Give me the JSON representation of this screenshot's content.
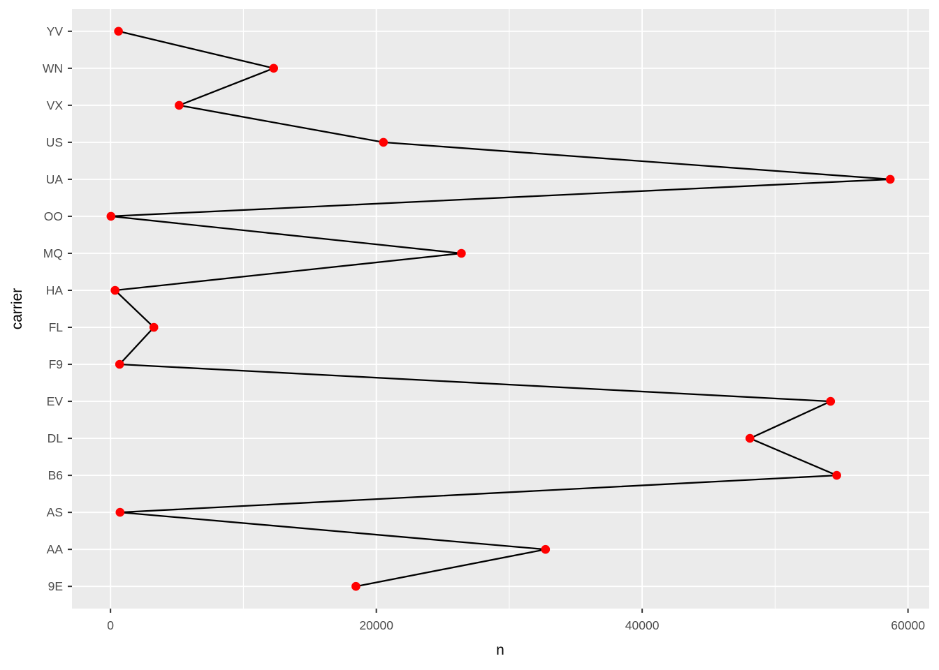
{
  "chart_data": {
    "type": "line",
    "subtype": "geom_line_plus_geom_point",
    "orientation": "categorical-y-continuous-x",
    "title": "",
    "xlabel": "n",
    "ylabel": "carrier",
    "categories_bottom_to_top": [
      "9E",
      "AA",
      "AS",
      "B6",
      "DL",
      "EV",
      "F9",
      "FL",
      "HA",
      "MQ",
      "OO",
      "UA",
      "US",
      "VX",
      "WN",
      "YV"
    ],
    "series": [
      {
        "name": "n",
        "values": [
          18460,
          32729,
          714,
          54635,
          48110,
          54173,
          685,
          3260,
          342,
          26397,
          32,
          58665,
          20536,
          5162,
          12275,
          601
        ]
      }
    ],
    "x_ticks": [
      0,
      20000,
      40000,
      60000
    ],
    "x_tick_labels": [
      "0",
      "20000",
      "40000",
      "60000"
    ],
    "x_minor_ticks": [
      10000,
      30000,
      50000
    ],
    "xlim": [
      -2900,
      61597
    ],
    "grid": "major-x, minor-x, major-y; white on grey panel",
    "legend": "none",
    "colors": {
      "panel_background": "#EBEBEB",
      "gridline_major": "#FFFFFF",
      "gridline_minor": "#FFFFFF",
      "point": "#FF0000",
      "line": "#000000",
      "tick_mark": "#333333",
      "tick_label": "#4D4D4D",
      "axis_title": "#000000",
      "figure_background": "#FFFFFF"
    }
  }
}
